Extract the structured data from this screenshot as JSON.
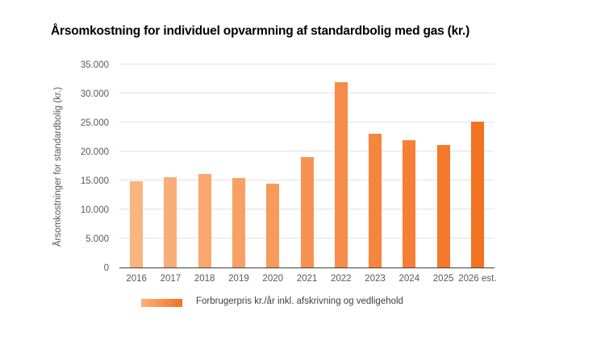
{
  "title": "Årsomkostning for individuel opvarmning af standardbolig med gas (kr.)",
  "colors": {
    "background": "#ffffff",
    "gridline": "#e2e2e2",
    "axis_line": "#3f3f3f",
    "tick_text": "#595959",
    "title_text": "#000000"
  },
  "chart_data": {
    "type": "bar",
    "title": "Årsomkostning for individuel opvarmning af standardbolig med gas (kr.)",
    "xlabel": "",
    "ylabel": "Årsomkostninger for standardbolig (kr.)",
    "categories": [
      "2016",
      "2017",
      "2018",
      "2019",
      "2020",
      "2021",
      "2022",
      "2023",
      "2024",
      "2025",
      "2026 est."
    ],
    "values": [
      14900,
      15600,
      16100,
      15400,
      14400,
      19000,
      32000,
      23000,
      21900,
      21100,
      25200
    ],
    "bar_colors": [
      "#FAB480",
      "#F9AD77",
      "#F9A76D",
      "#F8A064",
      "#F79A5A",
      "#F79351",
      "#F68C48",
      "#F5863E",
      "#F57F35",
      "#F4792B",
      "#F37222"
    ],
    "ylim": [
      0,
      35000
    ],
    "yticks": [
      0,
      5000,
      10000,
      15000,
      20000,
      25000,
      30000,
      35000
    ],
    "ytick_labels": [
      "0",
      "5.000",
      "10.000",
      "15.000",
      "20.000",
      "25.000",
      "30.000",
      "35.000"
    ],
    "grid": true,
    "legend": {
      "label": "Forbrugerpris kr./år inkl. afskrivning og vedligehold",
      "position": "bottom",
      "swatch_gradient": [
        "#F9B17C",
        "#F37222"
      ]
    }
  }
}
